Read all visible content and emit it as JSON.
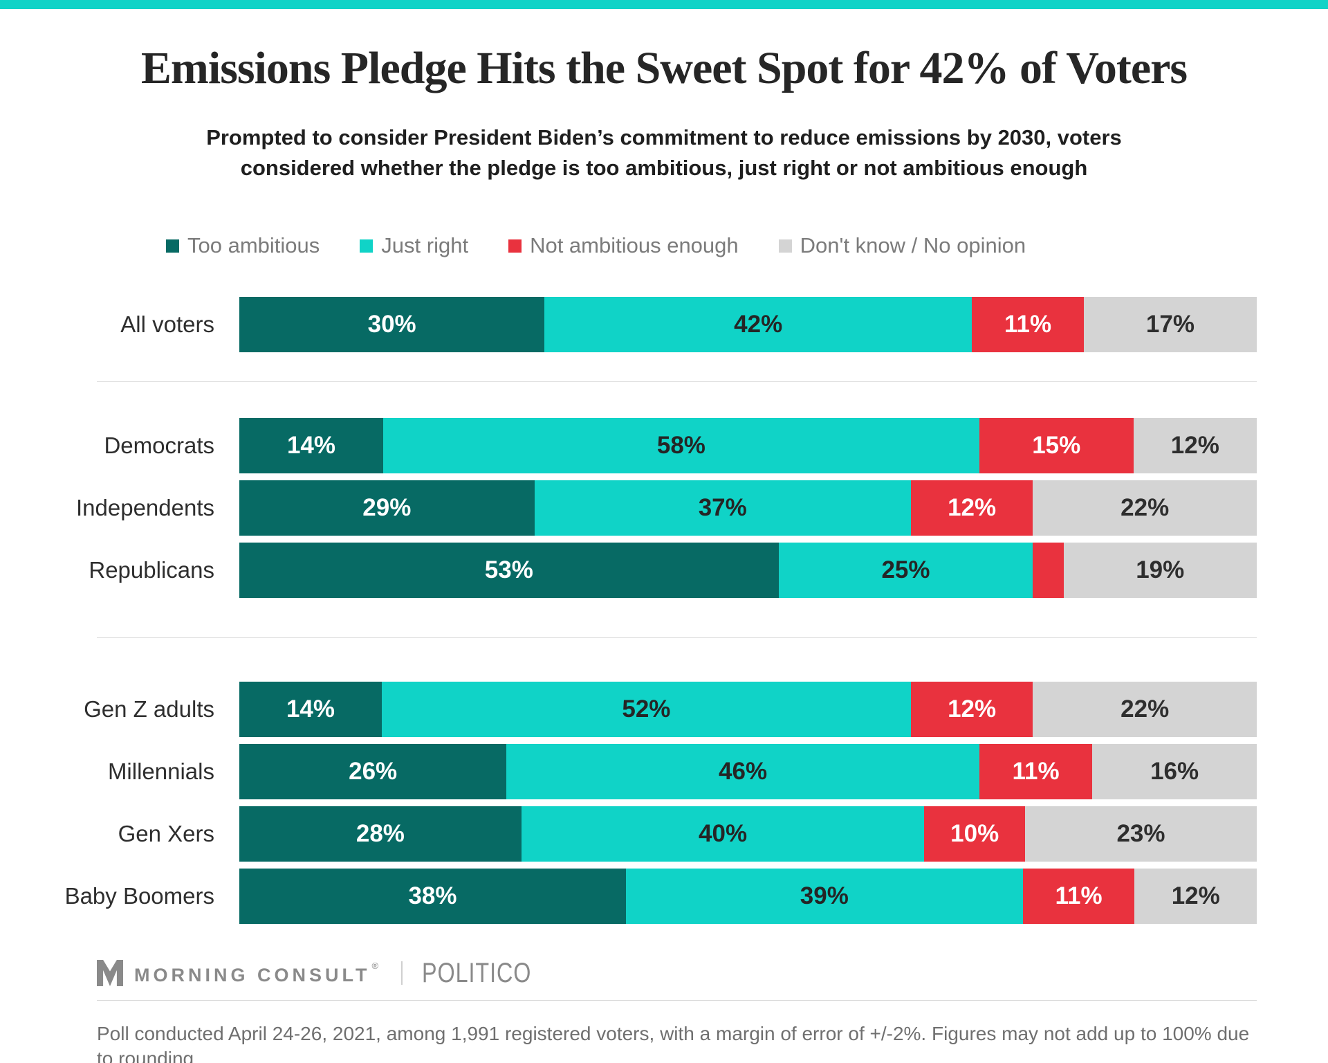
{
  "title": "Emissions Pledge Hits the Sweet Spot for 42% of Voters",
  "subtitle_lines": [
    "Prompted to consider President Biden’s commitment to reduce emissions by 2030, voters",
    "considered whether the pledge is too ambitious, just right or not ambitious enough"
  ],
  "colors": {
    "accent_bar": "#10d3c7",
    "too_ambitious": "#076a64",
    "just_right": "#10d3c7",
    "not_ambitious_enough": "#e9323e",
    "dont_know": "#d4d4d4"
  },
  "legend": {
    "items": [
      {
        "label": "Too ambitious",
        "color": "#076a64"
      },
      {
        "label": "Just right",
        "color": "#10d3c7"
      },
      {
        "label": "Not ambitious enough",
        "color": "#e9323e"
      },
      {
        "label": "Don't know / No opinion",
        "color": "#d4d4d4"
      }
    ]
  },
  "chart_data": {
    "type": "bar",
    "variant": "horizontal_stacked",
    "unit": "percent",
    "stack_order": [
      "Too ambitious",
      "Just right",
      "Not ambitious enough",
      "Don't know / No opinion"
    ],
    "series_colors": [
      "#076a64",
      "#10d3c7",
      "#e9323e",
      "#d4d4d4"
    ],
    "value_label_colors": [
      "#ffffff",
      "#252525",
      "#ffffff",
      "#2e2e2e"
    ],
    "groups": [
      {
        "name": "overall",
        "rows": [
          {
            "category": "All voters",
            "values": [
              30,
              42,
              11,
              17
            ],
            "labels": [
              "30%",
              "42%",
              "11%",
              "17%"
            ]
          }
        ]
      },
      {
        "name": "party",
        "rows": [
          {
            "category": "Democrats",
            "values": [
              14,
              58,
              15,
              12
            ],
            "labels": [
              "14%",
              "58%",
              "15%",
              "12%"
            ]
          },
          {
            "category": "Independents",
            "values": [
              29,
              37,
              12,
              22
            ],
            "labels": [
              "29%",
              "37%",
              "12%",
              "22%"
            ]
          },
          {
            "category": "Republicans",
            "values": [
              53,
              25,
              3,
              19
            ],
            "labels": [
              "53%",
              "25%",
              "",
              "19%"
            ]
          }
        ]
      },
      {
        "name": "generation",
        "rows": [
          {
            "category": "Gen Z adults",
            "values": [
              14,
              52,
              12,
              22
            ],
            "labels": [
              "14%",
              "52%",
              "12%",
              "22%"
            ]
          },
          {
            "category": "Millennials",
            "values": [
              26,
              46,
              11,
              16
            ],
            "labels": [
              "26%",
              "46%",
              "11%",
              "16%"
            ]
          },
          {
            "category": "Gen Xers",
            "values": [
              28,
              40,
              10,
              23
            ],
            "labels": [
              "28%",
              "40%",
              "10%",
              "23%"
            ]
          },
          {
            "category": "Baby Boomers",
            "values": [
              38,
              39,
              11,
              12
            ],
            "labels": [
              "38%",
              "39%",
              "11%",
              "12%"
            ]
          }
        ]
      }
    ],
    "annotation": "Republicans 'Not ambitious enough' segment (3%) shown without a value label"
  },
  "footer": {
    "brand": "MORNING CONSULT",
    "brand_mark": "®",
    "partner": "POLITICO",
    "note": "Poll conducted April 24-26, 2021, among 1,991 registered voters, with a margin of error of +/-2%. Figures may not add up to 100% due to rounding."
  }
}
